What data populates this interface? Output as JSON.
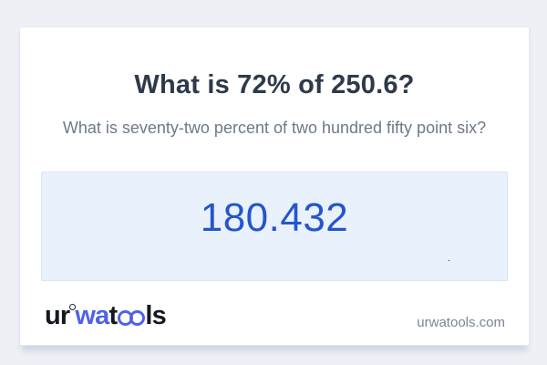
{
  "card": {
    "title": "What is 72% of 250.6?",
    "subtitle": "What is seventy-two percent of two hundred fifty point six?",
    "answer": {
      "value": "180.432",
      "stray_dot": "."
    },
    "footer": {
      "logo": {
        "part1": "ur",
        "part2": "wa",
        "part3": "t",
        "part4": "ls"
      },
      "website": "urwatools.com"
    }
  },
  "colors": {
    "page_background": "#eef0f6",
    "card_background": "#ffffff",
    "card_border": "#e4e7f1",
    "title_text": "#2d3a4a",
    "subtitle_text": "#6e7988",
    "answer_box_background": "#e9f1fc",
    "answer_box_border": "#d9e5f4",
    "answer_text": "#2456cb",
    "logo_black": "#14191f",
    "logo_blue": "#4e62e9",
    "website_text": "#7b8594"
  }
}
